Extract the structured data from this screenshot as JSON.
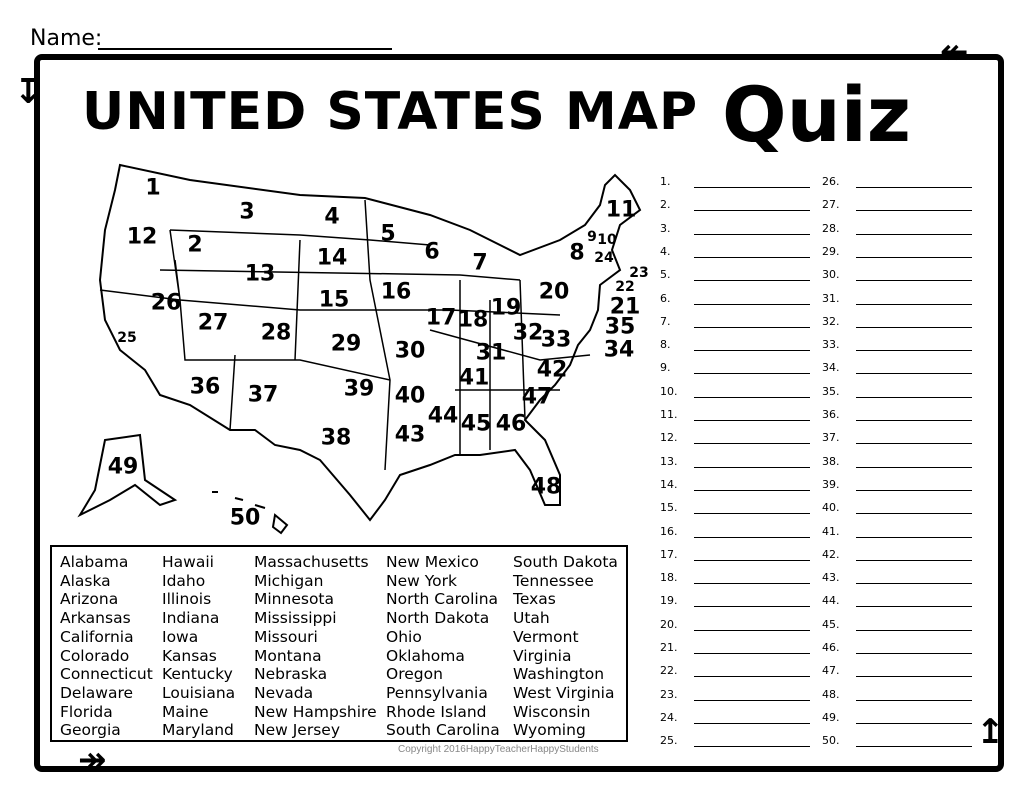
{
  "header": {
    "name_label": "Name:",
    "title": "UNITED STATES MAP",
    "title_accent": "Quiz"
  },
  "map": {
    "labels": [
      "1",
      "2",
      "3",
      "4",
      "5",
      "6",
      "7",
      "8",
      "9",
      "10",
      "11",
      "12",
      "13",
      "14",
      "15",
      "16",
      "17",
      "18",
      "19",
      "20",
      "21",
      "22",
      "23",
      "24",
      "25",
      "26",
      "27",
      "28",
      "29",
      "30",
      "31",
      "32",
      "33",
      "34",
      "35",
      "36",
      "37",
      "38",
      "39",
      "40",
      "41",
      "42",
      "43",
      "44",
      "45",
      "46",
      "47",
      "48",
      "49",
      "50"
    ]
  },
  "word_bank": {
    "columns": [
      [
        "Alabama",
        "Alaska",
        "Arizona",
        "Arkansas",
        "California",
        "Colorado",
        "Connecticut",
        "Delaware",
        "Florida",
        "Georgia"
      ],
      [
        "Hawaii",
        "Idaho",
        "Illinois",
        "Indiana",
        "Iowa",
        "Kansas",
        "Kentucky",
        "Louisiana",
        "Maine",
        "Maryland"
      ],
      [
        "Massachusetts",
        "Michigan",
        "Minnesota",
        "Mississippi",
        "Missouri",
        "Montana",
        "Nebraska",
        "Nevada",
        "New Hampshire",
        "New Jersey"
      ],
      [
        "New Mexico",
        "New York",
        "North Carolina",
        "North Dakota",
        "Ohio",
        "Oklahoma",
        "Oregon",
        "Pennsylvania",
        "Rhode Island",
        "South Carolina"
      ],
      [
        "South Dakota",
        "Tennessee",
        "Texas",
        "Utah",
        "Vermont",
        "Virginia",
        "Washington",
        "West Virginia",
        "Wisconsin",
        "Wyoming"
      ]
    ]
  },
  "answers": [
    "1.",
    "2.",
    "3.",
    "4.",
    "5.",
    "6.",
    "7.",
    "8.",
    "9.",
    "10.",
    "11.",
    "12.",
    "13.",
    "14.",
    "15.",
    "16.",
    "17.",
    "18.",
    "19.",
    "20.",
    "21.",
    "22.",
    "23.",
    "24.",
    "25.",
    "26.",
    "27.",
    "28.",
    "29.",
    "30.",
    "31.",
    "32.",
    "33.",
    "34.",
    "35.",
    "36.",
    "37.",
    "38.",
    "39.",
    "40.",
    "41.",
    "42.",
    "43.",
    "44.",
    "45.",
    "46.",
    "47.",
    "48.",
    "49.",
    "50."
  ],
  "footer": {
    "copyright": "Copyright 2016HappyTeacherHappyStudents"
  }
}
